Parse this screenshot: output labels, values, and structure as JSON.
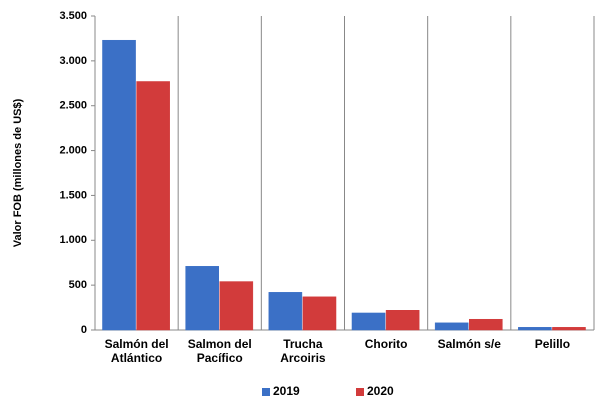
{
  "chart_data": {
    "type": "bar",
    "y_label": "Valor FOB (millones de US$)",
    "categories": [
      "Salmón del Atlántico",
      "Salmon del Pacífico",
      "Trucha Arcoiris",
      "Chorito",
      "Salmón s/e",
      "Pelillo"
    ],
    "series": [
      {
        "name": "2019",
        "color": "#3b70c6",
        "values": [
          3230,
          710,
          420,
          190,
          80,
          30
        ]
      },
      {
        "name": "2020",
        "color": "#d23b3b",
        "values": [
          2770,
          540,
          370,
          220,
          120,
          30
        ]
      }
    ],
    "ylim": [
      0,
      3500
    ],
    "yticks": [
      0,
      500,
      {
        "value": 1000,
        "label": "1.000"
      },
      {
        "value": 1500,
        "label": "1.500"
      },
      {
        "value": 2000,
        "label": "2.000"
      },
      {
        "value": 2500,
        "label": "2.500"
      },
      {
        "value": 3000,
        "label": "3.000"
      },
      {
        "value": 3500,
        "label": "3.500"
      }
    ],
    "category_separators": true
  }
}
